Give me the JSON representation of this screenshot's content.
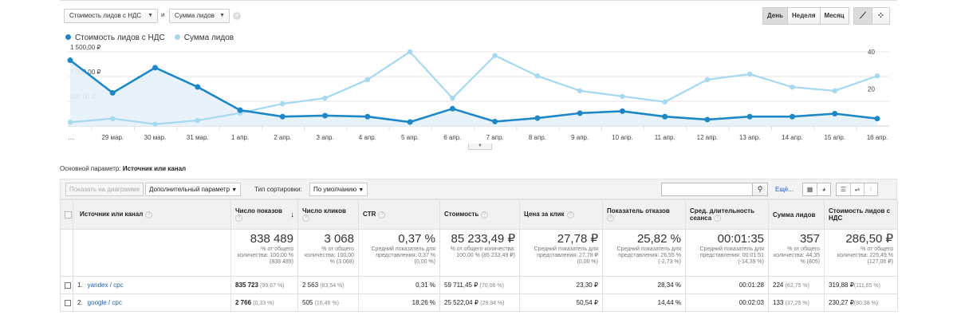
{
  "top_controls": {
    "metric1": "Стоимость лидов с НДС",
    "and_label": "и",
    "metric2": "Сумма лидов",
    "periods": [
      "День",
      "Неделя",
      "Месяц"
    ],
    "active_period": "День"
  },
  "legend": {
    "series1": "Стоимость лидов с НДС",
    "series2": "Сумма лидов"
  },
  "colors": {
    "series1": "#1e88c7",
    "series2": "#a6d8ef",
    "area": "#e4f1f9",
    "link": "#1a5fb4"
  },
  "chart_data": {
    "type": "line",
    "x": [
      "…",
      "29 мар.",
      "30 мар.",
      "31 мар.",
      "1 апр.",
      "2 апр.",
      "3 апр.",
      "4 апр.",
      "5 апр.",
      "6 апр.",
      "7 апр.",
      "8 апр.",
      "9 апр.",
      "10 апр.",
      "11 апр.",
      "12 апр.",
      "13 апр.",
      "14 апр.",
      "15 апр.",
      "16 апр."
    ],
    "y_left_ticks": [
      "1 500,00 ₽",
      "1 000,00 ₽",
      "500,00 ₽"
    ],
    "y_right_ticks": [
      "40",
      "20"
    ],
    "ylim_left": [
      0,
      1500
    ],
    "ylim_right": [
      0,
      40
    ],
    "series": [
      {
        "name": "Стоимость лидов с НДС",
        "axis": "left",
        "values": [
          1330,
          670,
          1180,
          790,
          320,
          190,
          210,
          190,
          80,
          350,
          90,
          160,
          260,
          300,
          190,
          130,
          190,
          190,
          250,
          150
        ]
      },
      {
        "name": "Сумма лидов",
        "axis": "right",
        "values": [
          2,
          4,
          1,
          3,
          7,
          12,
          15,
          25,
          40,
          15,
          38,
          27,
          19,
          16,
          13,
          25,
          28,
          21,
          19,
          27
        ]
      }
    ]
  },
  "primary_dimension": {
    "label": "Основной параметр:",
    "value": "Источник или канал"
  },
  "toolbar": {
    "plot_rows": "Показать на диаграмме",
    "secondary_dim": "Дополнительный параметр",
    "sort_label": "Тип сортировки:",
    "sort_value": "По умолчанию",
    "more": "Ещё..."
  },
  "table": {
    "columns": [
      "Источник или канал",
      "Число показов",
      "Число кликов",
      "CTR",
      "Стоимость",
      "Цена за клик",
      "Показатель отказов",
      "Сред. длительность сеанса",
      "Сумма лидов",
      "Стоимость лидов с НДС"
    ],
    "totals": [
      {
        "value": "838 489",
        "note": "% от общего количества: 100,00 % (838 489)"
      },
      {
        "value": "3 068",
        "note": "% от общего количества: 100,00 % (3 068)"
      },
      {
        "value": "0,37 %",
        "note": "Средний показатель для представления: 0,37 % (0,00 %)"
      },
      {
        "value": "85 233,49 ₽",
        "note": "% от общего количества: 100,00 % (85 233,49 ₽)"
      },
      {
        "value": "27,78 ₽",
        "note": "Средний показатель для представления: 27,78 ₽ (0,00 %)"
      },
      {
        "value": "25,82 %",
        "note": "Средний показатель для представления: 26,55 % (-2,73 %)"
      },
      {
        "value": "00:01:35",
        "note": "Средний показатель для представления: 00:01:51 (-14,39 %)"
      },
      {
        "value": "357",
        "note": "% от общего количества: 44,35 % (805)"
      },
      {
        "value": "286,50 ₽",
        "note": "% от общего количества: 225,49 % (127,06 ₽)"
      }
    ],
    "rows": [
      {
        "index": "1.",
        "source": "yandex / cpc",
        "impressions": "835 723",
        "impressions_pct": "(99,67 %)",
        "clicks": "2 563",
        "clicks_pct": "(83,54 %)",
        "ctr": "0,31 %",
        "cost": "59 711,45 ₽",
        "cost_pct": "(70,06 %)",
        "cpc": "23,30 ₽",
        "bounce": "28,34 %",
        "duration": "00:01:28",
        "leads": "224",
        "leads_pct": "(62,75 %)",
        "lead_cost": "319,88 ₽",
        "lead_cost_pct": "(111,65 %)"
      },
      {
        "index": "2.",
        "source": "google / cpc",
        "impressions": "2 766",
        "impressions_pct": "(0,33 %)",
        "clicks": "505",
        "clicks_pct": "(16,46 %)",
        "ctr": "18,26 %",
        "cost": "25 522,04 ₽",
        "cost_pct": "(29,94 %)",
        "cpc": "50,54 ₽",
        "bounce": "14,44 %",
        "duration": "00:02:03",
        "leads": "133",
        "leads_pct": "(37,25 %)",
        "lead_cost": "230,27 ₽",
        "lead_cost_pct": "(80,38 %)"
      }
    ]
  }
}
